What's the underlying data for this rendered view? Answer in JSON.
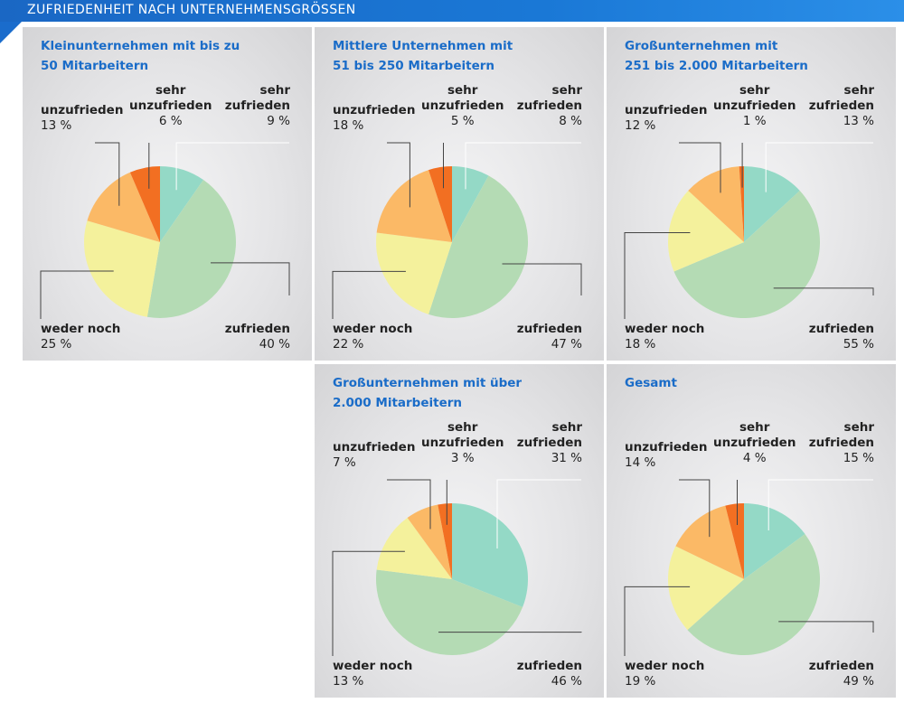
{
  "header": {
    "title": "ZUFRIEDENHEIT NACH UNTERNEHMENSGRÖSSEN"
  },
  "colors": {
    "sehr_zufrieden": "#94d9c6",
    "zufrieden": "#b4dbb4",
    "weder_noch": "#f4f19c",
    "unzufrieden": "#fbb966",
    "sehr_unzufrieden": "#f26f22",
    "title_blue": "#1a6cc8"
  },
  "chart_data": [
    {
      "type": "pie",
      "title": "Kleinunternehmen mit bis zu\n50 Mitarbeitern",
      "slices": [
        {
          "name": "sehr\nzufrieden",
          "value": 9,
          "label": "9 %"
        },
        {
          "name": "zufrieden",
          "value": 40,
          "label": "40 %"
        },
        {
          "name": "weder noch",
          "value": 25,
          "label": "25 %"
        },
        {
          "name": "unzufrieden",
          "value": 13,
          "label": "13 %"
        },
        {
          "name": "sehr\nunzufrieden",
          "value": 6,
          "label": "6 %"
        }
      ]
    },
    {
      "type": "pie",
      "title": "Mittlere Unternehmen mit\n51 bis 250 Mitarbeitern",
      "slices": [
        {
          "name": "sehr\nzufrieden",
          "value": 8,
          "label": "8 %"
        },
        {
          "name": "zufrieden",
          "value": 47,
          "label": "47 %"
        },
        {
          "name": "weder noch",
          "value": 22,
          "label": "22 %"
        },
        {
          "name": "unzufrieden",
          "value": 18,
          "label": "18 %"
        },
        {
          "name": "sehr\nunzufrieden",
          "value": 5,
          "label": "5 %"
        }
      ]
    },
    {
      "type": "pie",
      "title": "Großunternehmen mit\n251 bis 2.000 Mitarbeitern",
      "slices": [
        {
          "name": "sehr\nzufrieden",
          "value": 13,
          "label": "13 %"
        },
        {
          "name": "zufrieden",
          "value": 55,
          "label": "55 %"
        },
        {
          "name": "weder noch",
          "value": 18,
          "label": "18 %"
        },
        {
          "name": "unzufrieden",
          "value": 12,
          "label": "12 %"
        },
        {
          "name": "sehr\nunzufrieden",
          "value": 1,
          "label": "1 %"
        }
      ]
    },
    {
      "type": "pie",
      "title": "Großunternehmen mit über\n2.000 Mitarbeitern",
      "slices": [
        {
          "name": "sehr\nzufrieden",
          "value": 31,
          "label": "31 %"
        },
        {
          "name": "zufrieden",
          "value": 46,
          "label": "46 %"
        },
        {
          "name": "weder noch",
          "value": 13,
          "label": "13 %"
        },
        {
          "name": "unzufrieden",
          "value": 7,
          "label": "7 %"
        },
        {
          "name": "sehr\nunzufrieden",
          "value": 3,
          "label": "3 %"
        }
      ]
    },
    {
      "type": "pie",
      "title": "Gesamt",
      "slices": [
        {
          "name": "sehr\nzufrieden",
          "value": 15,
          "label": "15 %"
        },
        {
          "name": "zufrieden",
          "value": 49,
          "label": "49 %"
        },
        {
          "name": "weder noch",
          "value": 19,
          "label": "19 %"
        },
        {
          "name": "unzufrieden",
          "value": 14,
          "label": "14 %"
        },
        {
          "name": "sehr\nunzufrieden",
          "value": 4,
          "label": "4 %"
        }
      ]
    }
  ]
}
